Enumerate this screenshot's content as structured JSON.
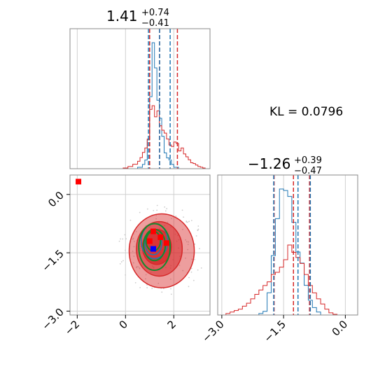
{
  "annotation": {
    "kl": "KL = 0.0796"
  },
  "colors": {
    "red": "#d62728",
    "blue": "#1f77b4",
    "green": "#138a2e",
    "marker_red": "#ff0000",
    "marker_blue": "#0000ff",
    "grid": "#d0d0d0",
    "axes": "#888888"
  },
  "titles": {
    "param1": {
      "median": "1.41",
      "plus": "+0.74",
      "minus": "−0.41"
    },
    "param2": {
      "median": "−1.26",
      "plus": "+0.39",
      "minus": "−0.47"
    }
  },
  "chart_data": [
    {
      "id": "marginal-param1",
      "type": "histogram",
      "xlim": [
        -2.3,
        3.5
      ],
      "grid": true,
      "series": [
        {
          "color": "blue",
          "bins": [
            -2.3,
            -2.1,
            -1.9,
            -1.7,
            -1.5,
            -1.3,
            -1.1,
            -0.9,
            -0.7,
            -0.5,
            -0.3,
            -0.1,
            0.1,
            0.3,
            0.5,
            0.7,
            0.8,
            0.9,
            1.0,
            1.1,
            1.2,
            1.3,
            1.4,
            1.5,
            1.6,
            1.7,
            1.8,
            1.9,
            2.0,
            2.2,
            2.4,
            3.5
          ],
          "counts": [
            0,
            0,
            0,
            0,
            0,
            0,
            0,
            0,
            0,
            0,
            0,
            0,
            0,
            0,
            2,
            6,
            12,
            40,
            100,
            175,
            140,
            95,
            70,
            45,
            22,
            15,
            12,
            6,
            2,
            0,
            0
          ]
        },
        {
          "color": "red",
          "bins": [
            -2.3,
            -0.1,
            0.1,
            0.3,
            0.5,
            0.6,
            0.7,
            0.8,
            0.9,
            1.0,
            1.1,
            1.2,
            1.3,
            1.4,
            1.5,
            1.6,
            1.7,
            1.8,
            1.9,
            2.0,
            2.1,
            2.2,
            2.3,
            2.4,
            2.5,
            2.6,
            2.7,
            2.8,
            2.9,
            3.0,
            3.1,
            3.2,
            3.3,
            3.5
          ],
          "counts": [
            0,
            1,
            3,
            6,
            10,
            15,
            22,
            28,
            40,
            80,
            85,
            70,
            78,
            58,
            52,
            48,
            40,
            32,
            30,
            36,
            34,
            24,
            28,
            20,
            16,
            12,
            8,
            7,
            5,
            3,
            2,
            1,
            0
          ]
        }
      ],
      "quantiles": [
        {
          "color": "red",
          "values": [
            1.0,
            1.41,
            2.15
          ]
        },
        {
          "color": "blue",
          "values": [
            0.95,
            1.41,
            1.85
          ]
        }
      ]
    },
    {
      "id": "marginal-param2",
      "type": "histogram",
      "xlim": [
        -3.1,
        0.3
      ],
      "xticks": [
        -3.0,
        -1.5,
        0.0
      ],
      "xtick_labels": [
        "−3.0",
        "−1.5",
        "0.0"
      ],
      "grid": true,
      "series": [
        {
          "color": "blue",
          "bins": [
            -3.1,
            -2.1,
            -2.0,
            -1.9,
            -1.8,
            -1.7,
            -1.6,
            -1.5,
            -1.4,
            -1.3,
            -1.2,
            -1.1,
            -1.0,
            -0.9,
            -0.8,
            -0.7,
            -0.6,
            -0.5,
            0.3
          ],
          "counts": [
            0,
            2,
            5,
            30,
            80,
            130,
            170,
            168,
            160,
            125,
            85,
            70,
            40,
            20,
            10,
            4,
            0,
            0
          ]
        },
        {
          "color": "red",
          "bins": [
            -3.1,
            -2.9,
            -2.8,
            -2.7,
            -2.6,
            -2.5,
            -2.4,
            -2.3,
            -2.2,
            -2.1,
            -2.0,
            -1.9,
            -1.8,
            -1.7,
            -1.6,
            -1.5,
            -1.4,
            -1.3,
            -1.2,
            -1.1,
            -1.0,
            -0.9,
            -0.8,
            -0.7,
            -0.6,
            -0.5,
            -0.4,
            -0.3,
            -0.2,
            0.3
          ],
          "counts": [
            0,
            2,
            4,
            6,
            8,
            12,
            16,
            22,
            28,
            34,
            40,
            45,
            55,
            58,
            65,
            75,
            95,
            85,
            78,
            70,
            55,
            40,
            30,
            22,
            15,
            8,
            3,
            1,
            0
          ]
        }
      ],
      "quantiles": [
        {
          "color": "red",
          "values": [
            -1.73,
            -1.26,
            -0.87
          ]
        },
        {
          "color": "blue",
          "values": [
            -1.74,
            -1.15,
            -0.85
          ]
        }
      ]
    },
    {
      "id": "joint-param1-param2",
      "type": "scatter",
      "xlim": [
        -2.3,
        3.5
      ],
      "ylim": [
        -3.1,
        0.5
      ],
      "xticks": [
        -2,
        0,
        2
      ],
      "xtick_labels": [
        "−2",
        "0",
        "2"
      ],
      "yticks": [
        -3.0,
        -1.5,
        0.0
      ],
      "ytick_labels": [
        "−3.0",
        "−1.5",
        "0.0"
      ],
      "grid": true,
      "contours": [
        {
          "color": "red",
          "fill": true,
          "levels": [
            {
              "center": [
                1.5,
                -1.45
              ],
              "radius": [
                1.35,
                0.95
              ],
              "angle": 0
            },
            {
              "center": [
                1.4,
                -1.4
              ],
              "radius": [
                0.95,
                0.7
              ],
              "angle": 0
            },
            {
              "center": [
                1.3,
                -1.35
              ],
              "radius": [
                0.6,
                0.45
              ],
              "angle": 0
            }
          ]
        },
        {
          "color": "blue",
          "fill": false,
          "levels": [
            {
              "center": [
                1.2,
                -1.2
              ],
              "radius": [
                0.55,
                0.45
              ],
              "angle": 0
            },
            {
              "center": [
                1.15,
                -1.25
              ],
              "radius": [
                0.35,
                0.3
              ],
              "angle": 0
            }
          ]
        },
        {
          "color": "green",
          "fill": false,
          "levels": [
            {
              "center": [
                1.2,
                -1.35
              ],
              "radius": [
                0.65,
                0.6
              ],
              "angle": 0
            },
            {
              "center": [
                1.2,
                -1.3
              ],
              "radius": [
                0.45,
                0.4
              ],
              "angle": 0
            },
            {
              "center": [
                1.15,
                -1.2
              ],
              "radius": [
                0.3,
                0.25
              ],
              "angle": 0
            }
          ]
        }
      ],
      "markers": [
        {
          "color": "marker_red",
          "x": -1.95,
          "y": 0.33
        },
        {
          "color": "marker_red",
          "x": 1.15,
          "y": -0.95
        },
        {
          "color": "marker_red",
          "x": 1.45,
          "y": -1.1
        },
        {
          "color": "marker_red",
          "x": 1.7,
          "y": -1.25
        },
        {
          "color": "marker_red",
          "x": 1.0,
          "y": -1.2
        },
        {
          "color": "marker_blue",
          "x": 1.15,
          "y": -1.4
        }
      ]
    }
  ]
}
